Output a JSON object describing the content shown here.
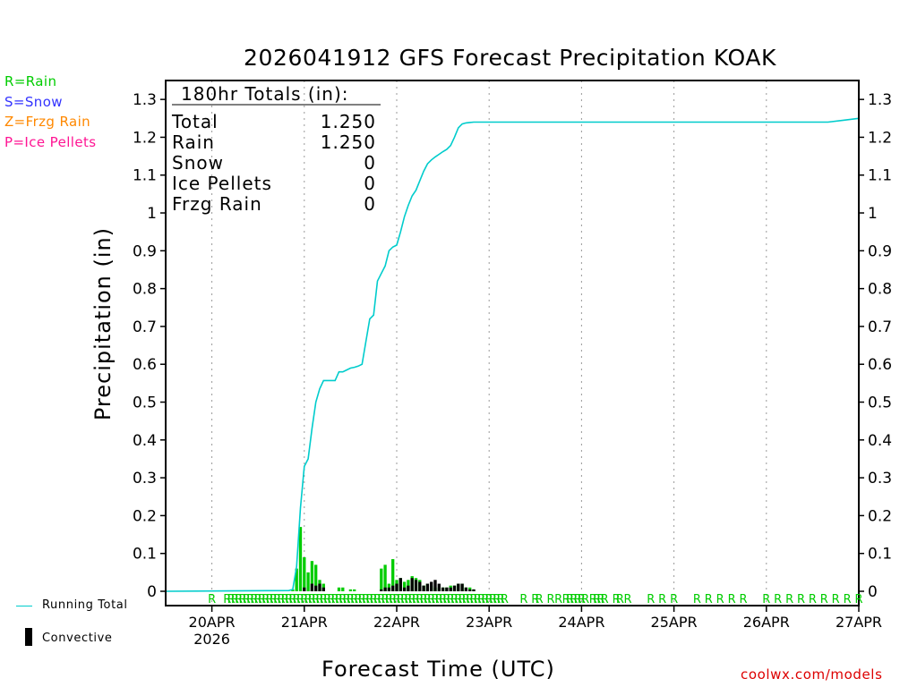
{
  "chart_data": {
    "type": "bar",
    "title": "2026041912 GFS Forecast Precipitation KOAK",
    "xlabel": "Forecast Time (UTC)",
    "ylabel": "Precipitation (in)",
    "credit": "coolwx.com/models",
    "ylim": [
      0,
      1.35
    ],
    "yticks": [
      0,
      0.1,
      0.2,
      0.3,
      0.4,
      0.5,
      0.6,
      0.7,
      0.8,
      0.9,
      1,
      1.1,
      1.2,
      1.3
    ],
    "ytick_labels": [
      "0",
      "0.1",
      "0.2",
      "0.3",
      "0.4",
      "0.5",
      "0.6",
      "0.7",
      "0.8",
      "0.9",
      "1",
      "1.1",
      "1.2",
      "1.3"
    ],
    "xlim_hours": [
      -12,
      168
    ],
    "x_unit": "forecast hours since 2026-04-20 00 UTC",
    "xticks": [
      {
        "hour": 0,
        "label": "20APR",
        "sublabel": "2026"
      },
      {
        "hour": 24,
        "label": "21APR",
        "sublabel": ""
      },
      {
        "hour": 48,
        "label": "22APR",
        "sublabel": ""
      },
      {
        "hour": 72,
        "label": "23APR",
        "sublabel": ""
      },
      {
        "hour": 96,
        "label": "24APR",
        "sublabel": ""
      },
      {
        "hour": 120,
        "label": "25APR",
        "sublabel": ""
      },
      {
        "hour": 144,
        "label": "26APR",
        "sublabel": ""
      },
      {
        "hour": 168,
        "label": "27APR",
        "sublabel": ""
      }
    ],
    "totals_box": {
      "heading": "180hr Totals (in):",
      "rows": [
        {
          "label": "Total",
          "value": "1.250"
        },
        {
          "label": "Rain",
          "value": "1.250"
        },
        {
          "label": "Snow",
          "value": "0"
        },
        {
          "label": "Ice Pellets",
          "value": "0"
        },
        {
          "label": "Frzg Rain",
          "value": "0"
        }
      ]
    },
    "type_legend": [
      {
        "label": "R=Rain",
        "color": "#00cc00"
      },
      {
        "label": "S=Snow",
        "color": "#3333ff"
      },
      {
        "label": "Z=Frzg Rain",
        "color": "#ff8800"
      },
      {
        "label": "P=Ice Pellets",
        "color": "#ff1493"
      }
    ],
    "series_legend": [
      {
        "label": "Running Total",
        "color": "#00cccc",
        "kind": "line"
      },
      {
        "label": "Convective",
        "color": "#000000",
        "kind": "bar"
      }
    ],
    "bar_width_hours": 1,
    "series": [
      {
        "name": "Precipitation",
        "color": "#00cc00",
        "x": [
          21,
          22,
          23,
          24,
          25,
          26,
          27,
          28,
          29,
          33,
          34,
          36,
          37,
          44,
          45,
          46,
          47,
          48,
          49,
          50,
          51,
          52,
          53,
          54,
          55,
          56,
          57,
          58,
          59,
          60,
          61,
          62,
          63,
          64,
          65,
          66,
          67,
          68
        ],
        "values": [
          0.005,
          0.06,
          0.17,
          0.09,
          0.05,
          0.08,
          0.07,
          0.03,
          0.02,
          0.01,
          0.01,
          0.005,
          0.005,
          0.06,
          0.07,
          0.02,
          0.085,
          0.03,
          0.035,
          0.025,
          0.03,
          0.04,
          0.035,
          0.03,
          0.015,
          0.02,
          0.015,
          0.01,
          0.01,
          0.01,
          0.01,
          0.015,
          0.015,
          0.02,
          0.02,
          0.01,
          0.01,
          0.005
        ]
      },
      {
        "name": "Convective",
        "color": "#000000",
        "x": [
          24,
          26,
          27,
          28,
          29,
          44,
          45,
          46,
          47,
          48,
          49,
          50,
          51,
          52,
          53,
          54,
          55,
          56,
          57,
          58,
          59,
          60,
          61,
          62,
          63,
          64,
          65,
          66,
          67,
          68
        ],
        "values": [
          0.01,
          0.02,
          0.015,
          0.02,
          0.01,
          0.005,
          0.01,
          0.01,
          0.015,
          0.02,
          0.035,
          0.01,
          0.015,
          0.035,
          0.03,
          0.025,
          0.015,
          0.02,
          0.025,
          0.03,
          0.02,
          0.01,
          0.01,
          0.01,
          0.015,
          0.02,
          0.02,
          0.01,
          0.005,
          0.005
        ]
      },
      {
        "name": "Running Total",
        "type": "line",
        "color": "#00cccc",
        "x": [
          -12,
          20,
          21,
          22,
          23,
          24,
          25,
          26,
          27,
          28,
          29,
          30,
          31,
          32,
          33,
          34,
          35,
          36,
          37,
          38,
          39,
          40,
          41,
          42,
          43,
          44,
          45,
          46,
          47,
          48,
          49,
          50,
          51,
          52,
          53,
          54,
          55,
          56,
          57,
          58,
          59,
          60,
          61,
          62,
          63,
          64,
          65,
          66,
          67,
          68,
          69,
          70,
          72,
          80,
          120,
          138,
          150,
          160,
          164,
          168
        ],
        "values": [
          0,
          0.002,
          0.005,
          0.065,
          0.22,
          0.33,
          0.35,
          0.43,
          0.5,
          0.535,
          0.557,
          0.557,
          0.557,
          0.557,
          0.58,
          0.58,
          0.585,
          0.59,
          0.592,
          0.595,
          0.6,
          0.66,
          0.72,
          0.73,
          0.82,
          0.84,
          0.86,
          0.9,
          0.91,
          0.915,
          0.95,
          0.99,
          1.02,
          1.045,
          1.06,
          1.085,
          1.11,
          1.13,
          1.14,
          1.148,
          1.155,
          1.162,
          1.168,
          1.178,
          1.2,
          1.225,
          1.235,
          1.238,
          1.239,
          1.24,
          1.24,
          1.24,
          1.24,
          1.24,
          1.24,
          1.24,
          1.24,
          1.24,
          1.245,
          1.25
        ]
      }
    ],
    "ptype_markers": {
      "letter": "R",
      "color": "#00cc00",
      "hours": [
        0,
        4,
        5,
        6,
        7,
        8,
        9,
        10,
        11,
        12,
        13,
        14,
        15,
        16,
        17,
        18,
        19,
        20,
        21,
        22,
        23,
        24,
        25,
        26,
        27,
        28,
        29,
        30,
        31,
        32,
        33,
        34,
        35,
        36,
        37,
        38,
        39,
        40,
        41,
        42,
        43,
        44,
        45,
        46,
        47,
        48,
        49,
        50,
        51,
        52,
        53,
        54,
        55,
        56,
        57,
        58,
        59,
        60,
        61,
        62,
        63,
        64,
        65,
        66,
        67,
        68,
        69,
        70,
        71,
        72,
        73,
        74,
        75,
        76,
        81,
        84,
        85,
        88,
        90,
        92,
        93,
        94,
        95,
        96,
        97,
        99,
        100,
        101,
        102,
        105,
        106,
        108,
        114,
        117,
        120,
        126,
        129,
        132,
        135,
        138,
        144,
        147,
        150,
        153,
        156,
        159,
        162,
        165,
        168
      ]
    }
  }
}
